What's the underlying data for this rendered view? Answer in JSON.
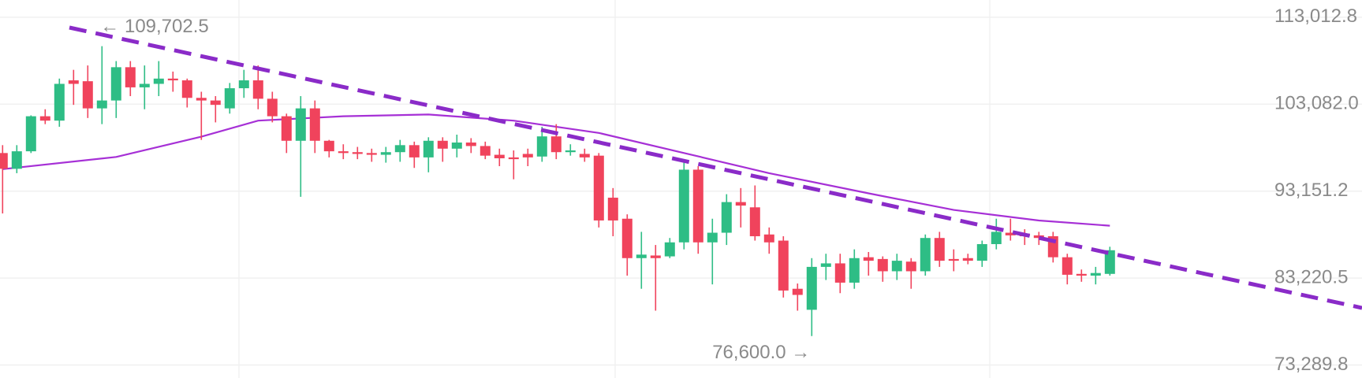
{
  "chart_data": {
    "type": "candlestick",
    "annotations": [
      "← 109,702.5",
      "76,600.0 →"
    ],
    "ylim": [
      71811,
      114975
    ],
    "yticks": [
      {
        "value": 113012.8,
        "label": "113,012.8"
      },
      {
        "value": 103082.0,
        "label": "103,082.0"
      },
      {
        "value": 93151.2,
        "label": "93,151.2"
      },
      {
        "value": 83220.5,
        "label": "83,220.5"
      },
      {
        "value": 73289.8,
        "label": "73,289.8"
      }
    ],
    "grid": true,
    "up_color": "#2ebd85",
    "down_color": "#f0435c",
    "open": [
      97500,
      95700,
      97700,
      101700,
      101200,
      105800,
      105700,
      102600,
      103500,
      107300,
      105000,
      105400,
      106000,
      105800,
      103800,
      103500,
      102600,
      104900,
      105800,
      103700,
      101700,
      98900,
      102600,
      98900,
      97700,
      97600,
      97500,
      97300,
      97600,
      98400,
      97000,
      98900,
      98000,
      98700,
      98300,
      97300,
      97000,
      97400,
      97100,
      99400,
      97600,
      97400,
      97200,
      92400,
      90000,
      85500,
      85800,
      85700,
      87300,
      95600,
      87300,
      88400,
      91900,
      91300,
      88200,
      87500,
      82000,
      79600,
      84500,
      84900,
      82700,
      85600,
      85400,
      84000,
      85100,
      84000,
      87800,
      85400,
      85500,
      85200,
      87100,
      88400,
      88300,
      88100,
      88000,
      85600,
      83700,
      83500,
      83700
    ],
    "high": [
      98400,
      98400,
      101800,
      102500,
      106000,
      107000,
      107500,
      109702.5,
      108000,
      108000,
      107500,
      108000,
      106800,
      106000,
      104500,
      104000,
      105500,
      107000,
      107500,
      104500,
      102000,
      104000,
      103500,
      99000,
      98500,
      98200,
      98000,
      98200,
      99000,
      98800,
      99300,
      99300,
      99600,
      99200,
      98800,
      98000,
      97800,
      98000,
      100500,
      100800,
      98500,
      98000,
      97500,
      93500,
      90500,
      88500,
      87000,
      87800,
      96500,
      96000,
      90000,
      92800,
      93500,
      93800,
      89000,
      88000,
      82600,
      85500,
      86000,
      86000,
      86500,
      86200,
      85700,
      86000,
      85500,
      88200,
      88500,
      86500,
      86000,
      87500,
      90000,
      90000,
      88800,
      88500,
      88500,
      86000,
      84200,
      84500,
      86800
    ],
    "low": [
      90600,
      95200,
      97500,
      100800,
      100500,
      103000,
      101500,
      100800,
      101500,
      104000,
      102500,
      104000,
      104500,
      102700,
      99000,
      101000,
      102000,
      103800,
      102500,
      101000,
      97500,
      92500,
      97500,
      97000,
      96800,
      96800,
      96500,
      96400,
      96500,
      95800,
      95300,
      96500,
      97000,
      97500,
      96800,
      96000,
      94500,
      96000,
      96500,
      96800,
      97200,
      96500,
      89000,
      88000,
      83500,
      82000,
      79500,
      85500,
      86500,
      86000,
      82500,
      87000,
      89000,
      87500,
      86000,
      81000,
      79500,
      76600,
      83000,
      81500,
      82000,
      83500,
      82800,
      83000,
      82000,
      83500,
      84500,
      84000,
      84800,
      84500,
      86500,
      87500,
      87000,
      87000,
      85000,
      82500,
      82800,
      82500,
      83500
    ],
    "close": [
      95700,
      97700,
      101700,
      101200,
      105400,
      105400,
      102600,
      103500,
      107300,
      105000,
      105400,
      106000,
      105800,
      103800,
      103500,
      103000,
      104900,
      105800,
      103700,
      101700,
      98900,
      102600,
      98900,
      97700,
      97500,
      97400,
      97300,
      97600,
      98400,
      97000,
      98900,
      98000,
      98700,
      98300,
      97200,
      96900,
      96800,
      97000,
      99400,
      97600,
      97800,
      97000,
      89800,
      89800,
      85500,
      85900,
      85500,
      87300,
      95600,
      87300,
      88400,
      91900,
      91500,
      88000,
      87300,
      81800,
      81300,
      84500,
      84900,
      82700,
      85500,
      85200,
      84000,
      85200,
      84000,
      87800,
      85200,
      85200,
      85200,
      87100,
      88500,
      88100,
      88000,
      87800,
      85600,
      83600,
      83500,
      83800,
      86400
    ],
    "lines": [
      {
        "color": "#a630d6",
        "x": [
          0,
          8,
          14,
          18,
          24,
          30,
          36,
          42,
          48,
          54,
          61,
          67,
          73,
          78
        ],
        "values": [
          95660,
          97050,
          99370,
          101200,
          101700,
          101900,
          101200,
          99800,
          97500,
          95200,
          92900,
          91000,
          89800,
          89200
        ]
      }
    ]
  }
}
